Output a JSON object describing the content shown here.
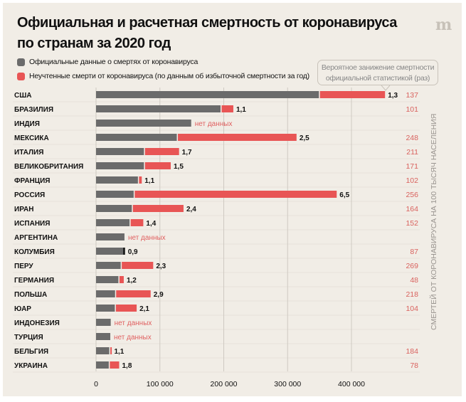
{
  "chart_data": {
    "type": "bar",
    "stacked": true,
    "orientation": "horizontal",
    "title": "Официальная и расчетная смертность от коронавируса по странам за 2020 год",
    "title_lines": [
      "Официальная и расчетная смертность от коронавируса",
      "по странам за 2020 год"
    ],
    "logo": "m",
    "categories": [
      "США",
      "БРАЗИЛИЯ",
      "ИНДИЯ",
      "МЕКСИКА",
      "ИТАЛИЯ",
      "ВЕЛИКОБРИТАНИЯ",
      "ФРАНЦИЯ",
      "РОССИЯ",
      "ИРАН",
      "ИСПАНИЯ",
      "АРГЕНТИНА",
      "КОЛУМБИЯ",
      "ПЕРУ",
      "ГЕРМАНИЯ",
      "ПОЛЬША",
      "ЮАР",
      "ИНДОНЕЗИЯ",
      "ТУРЦИЯ",
      "БЕЛЬГИЯ",
      "УКРАИНА"
    ],
    "series": [
      {
        "name": "Официальные данные о смертях от коронавируса",
        "color": "#6b6b6b",
        "values": [
          349000,
          195000,
          149000,
          126500,
          75000,
          75000,
          65600,
          58900,
          56000,
          52500,
          44500,
          43700,
          38600,
          35000,
          29800,
          29400,
          23000,
          22300,
          20700,
          19900
        ]
      },
      {
        "name": "Неучтенные смерти от коронавируса (по данным об избыточной смертности за год)",
        "color": "#e85555",
        "values": [
          103600,
          20000,
          null,
          187500,
          55000,
          42000,
          6000,
          318000,
          81000,
          21500,
          null,
          0,
          50900,
          8400,
          55700,
          34200,
          null,
          null,
          3200,
          16300
        ]
      }
    ],
    "bar_labels": [
      "1,3",
      "1,1",
      "нет данных",
      "2,5",
      "1,7",
      "1,5",
      "1,1",
      "6,5",
      "2,4",
      "1,4",
      "нет данных",
      "0,9",
      "2,3",
      "1,2",
      "2,9",
      "2,1",
      "нет данных",
      "нет данных",
      "1,1",
      "1,8"
    ],
    "right_values": [
      "137",
      "101",
      "",
      "248",
      "211",
      "171",
      "102",
      "256",
      "164",
      "152",
      "",
      "87",
      "269",
      "48",
      "218",
      "104",
      "",
      "",
      "184",
      "78"
    ],
    "right_axis_label": "СМЕРТЕЙ ОТ КОРОНАВИРУСА НА 100 ТЫСЯЧ НАСЕЛЕНИЯ",
    "annotation": [
      "Вероятное занижение смертности",
      "официальной статистикой (раз)"
    ],
    "xticks": [
      0,
      100000,
      200000,
      300000,
      400000
    ],
    "xtick_labels": [
      "0",
      "100 000",
      "200 000",
      "300 000",
      "400 000"
    ],
    "xlim": [
      0,
      460000
    ],
    "grid": true,
    "legend_position": "top-left",
    "colors": {
      "official": "#6b6b6b",
      "excess": "#e85555",
      "no_data_text": "#e06060",
      "right_values": "#d9625e",
      "background": "#f1ede6"
    }
  }
}
